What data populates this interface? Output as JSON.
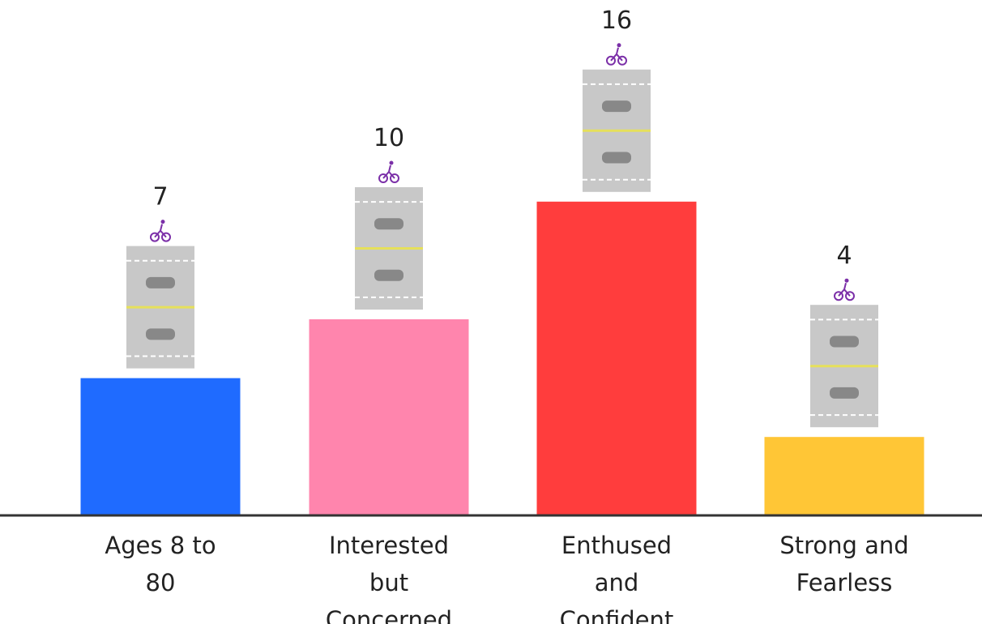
{
  "chart_data": {
    "type": "bar",
    "categories": [
      "Ages 8 to 80",
      "Interested but Concerned",
      "Enthused and Confident",
      "Strong and Fearless"
    ],
    "values": [
      7,
      10,
      16,
      4
    ],
    "colors": [
      "#1f6bff",
      "#ff85ad",
      "#ff3d3d",
      "#ffc636"
    ]
  }
}
